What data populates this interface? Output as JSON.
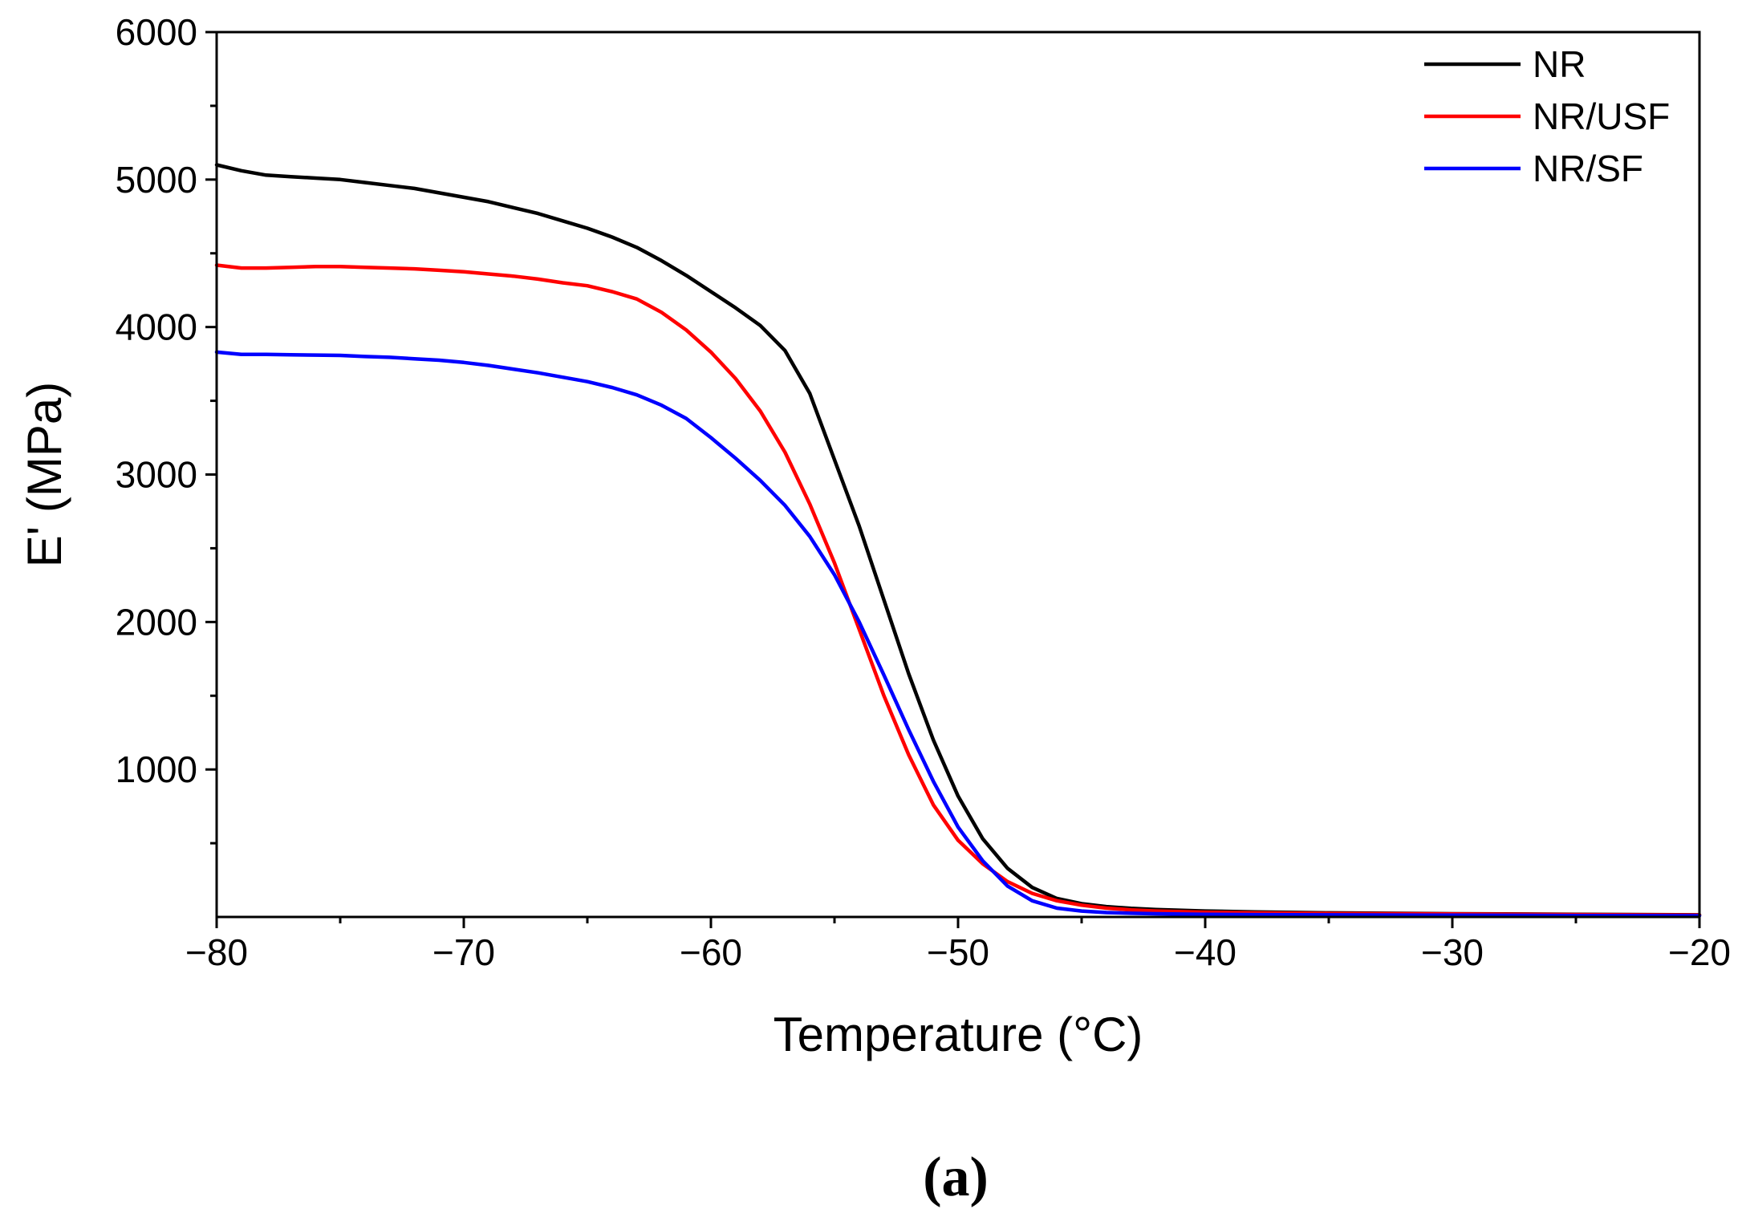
{
  "chart_data": {
    "type": "line",
    "title": "",
    "xlabel": "Temperature (°C)",
    "ylabel": "E' (MPa)",
    "xlim": [
      -80,
      -20
    ],
    "ylim": [
      0,
      6000
    ],
    "x_ticks": [
      -80,
      -70,
      -60,
      -50,
      -40,
      -30,
      -20
    ],
    "x_tick_labels": [
      "−80",
      "−70",
      "−60",
      "−50",
      "−40",
      "−30",
      "−20"
    ],
    "y_ticks": [
      1000,
      2000,
      3000,
      4000,
      5000,
      6000
    ],
    "y_tick_labels": [
      "1000",
      "2000",
      "3000",
      "4000",
      "5000",
      "6000"
    ],
    "grid": false,
    "legend_position": "top-right",
    "panel_label": "(a)",
    "series": [
      {
        "name": "NR",
        "color": "#000000",
        "x": [
          -80,
          -79,
          -78,
          -77,
          -76,
          -75,
          -74,
          -73,
          -72,
          -71,
          -70,
          -69,
          -68,
          -67,
          -66,
          -65,
          -64,
          -63,
          -62,
          -61,
          -60,
          -59,
          -58,
          -57,
          -56,
          -55,
          -54,
          -53,
          -52,
          -51,
          -50,
          -49,
          -48,
          -47,
          -46,
          -45,
          -44,
          -43,
          -42,
          -40,
          -38,
          -35,
          -30,
          -25,
          -20
        ],
        "values": [
          5100,
          5060,
          5030,
          5020,
          5010,
          5000,
          4980,
          4960,
          4940,
          4910,
          4880,
          4850,
          4810,
          4770,
          4720,
          4670,
          4610,
          4540,
          4450,
          4350,
          4240,
          4130,
          4010,
          3840,
          3550,
          3100,
          2650,
          2150,
          1650,
          1200,
          820,
          530,
          330,
          200,
          125,
          90,
          70,
          58,
          50,
          40,
          34,
          28,
          22,
          18,
          14
        ]
      },
      {
        "name": "NR/USF",
        "color": "#ff0000",
        "x": [
          -80,
          -79,
          -78,
          -77,
          -76,
          -75,
          -74,
          -73,
          -72,
          -71,
          -70,
          -69,
          -68,
          -67,
          -66,
          -65,
          -64,
          -63,
          -62,
          -61,
          -60,
          -59,
          -58,
          -57,
          -56,
          -55,
          -54,
          -53,
          -52,
          -51,
          -50,
          -49,
          -48,
          -47,
          -46,
          -45,
          -44,
          -43,
          -42,
          -40,
          -38,
          -35,
          -30,
          -25,
          -20
        ],
        "values": [
          4420,
          4400,
          4400,
          4405,
          4410,
          4410,
          4405,
          4400,
          4395,
          4385,
          4375,
          4360,
          4345,
          4325,
          4300,
          4280,
          4240,
          4190,
          4100,
          3980,
          3830,
          3650,
          3430,
          3150,
          2800,
          2400,
          1950,
          1500,
          1100,
          760,
          520,
          360,
          240,
          160,
          110,
          80,
          60,
          48,
          40,
          32,
          28,
          24,
          20,
          16,
          13
        ]
      },
      {
        "name": "NR/SF",
        "color": "#0000ff",
        "x": [
          -80,
          -79,
          -78,
          -77,
          -76,
          -75,
          -74,
          -73,
          -72,
          -71,
          -70,
          -69,
          -68,
          -67,
          -66,
          -65,
          -64,
          -63,
          -62,
          -61,
          -60,
          -59,
          -58,
          -57,
          -56,
          -55,
          -54,
          -53,
          -52,
          -51,
          -50,
          -49,
          -48,
          -47,
          -46,
          -45,
          -44,
          -43,
          -42,
          -40,
          -38,
          -35,
          -30,
          -25,
          -20
        ],
        "values": [
          3830,
          3815,
          3815,
          3812,
          3810,
          3808,
          3800,
          3795,
          3785,
          3775,
          3760,
          3740,
          3715,
          3690,
          3660,
          3630,
          3590,
          3540,
          3470,
          3380,
          3250,
          3110,
          2960,
          2790,
          2580,
          2320,
          2000,
          1640,
          1270,
          920,
          610,
          380,
          210,
          110,
          60,
          40,
          30,
          25,
          22,
          18,
          16,
          14,
          12,
          10,
          8
        ]
      }
    ]
  }
}
